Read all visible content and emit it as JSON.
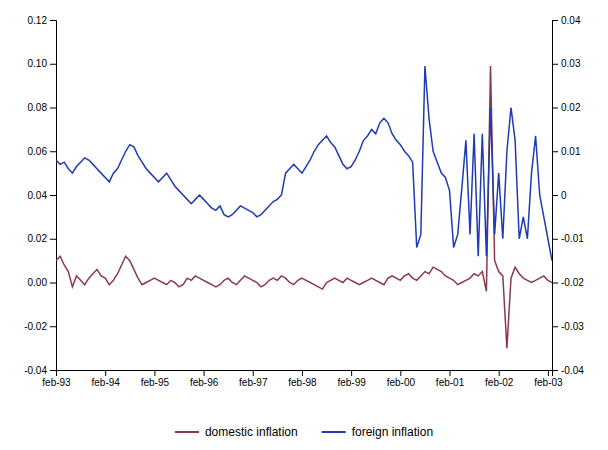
{
  "chart_data": {
    "type": "line",
    "categories": [
      "feb-93",
      null,
      null,
      null,
      null,
      null,
      null,
      null,
      null,
      null,
      null,
      null,
      "feb-94",
      null,
      null,
      null,
      null,
      null,
      null,
      null,
      null,
      null,
      null,
      null,
      "feb-95",
      null,
      null,
      null,
      null,
      null,
      null,
      null,
      null,
      null,
      null,
      null,
      "feb-96",
      null,
      null,
      null,
      null,
      null,
      null,
      null,
      null,
      null,
      null,
      null,
      "feb-97",
      null,
      null,
      null,
      null,
      null,
      null,
      null,
      null,
      null,
      null,
      null,
      "feb-98",
      null,
      null,
      null,
      null,
      null,
      null,
      null,
      null,
      null,
      null,
      null,
      "feb-99",
      null,
      null,
      null,
      null,
      null,
      null,
      null,
      null,
      null,
      null,
      null,
      "feb-00",
      null,
      null,
      null,
      null,
      null,
      null,
      null,
      null,
      null,
      null,
      null,
      "feb-01",
      null,
      null,
      null,
      null,
      null,
      null,
      null,
      null,
      null,
      null,
      null,
      "feb-02",
      null,
      null,
      null,
      null,
      null,
      null,
      null,
      null,
      null,
      null,
      null,
      "feb-03",
      null
    ],
    "series": [
      {
        "name": "domestic inflation",
        "color": "#8B3A4A",
        "values": [
          0.01,
          0.012,
          0.008,
          0.005,
          -0.002,
          0.003,
          0.001,
          -0.001,
          0.002,
          0.004,
          0.006,
          0.003,
          0.002,
          -0.001,
          0.001,
          0.004,
          0.008,
          0.012,
          0.01,
          0.006,
          0.002,
          -0.001,
          0.0,
          0.001,
          0.002,
          0.001,
          0.0,
          -0.001,
          0.001,
          0.0,
          -0.002,
          -0.001,
          0.002,
          0.001,
          0.003,
          0.002,
          0.001,
          0.0,
          -0.001,
          -0.002,
          -0.001,
          0.001,
          0.002,
          0.0,
          -0.001,
          0.001,
          0.003,
          0.002,
          0.001,
          0.0,
          -0.002,
          -0.001,
          0.001,
          0.002,
          0.001,
          0.003,
          0.002,
          0.0,
          -0.001,
          0.001,
          0.002,
          0.001,
          0.0,
          -0.001,
          -0.002,
          -0.003,
          0.0,
          0.001,
          0.002,
          0.001,
          0.0,
          0.002,
          0.001,
          0.0,
          -0.001,
          0.0,
          0.001,
          0.002,
          0.001,
          0.0,
          -0.001,
          0.002,
          0.003,
          0.002,
          0.001,
          0.003,
          0.004,
          0.002,
          0.001,
          0.003,
          0.005,
          0.004,
          0.007,
          0.006,
          0.005,
          0.003,
          0.002,
          0.001,
          -0.001,
          0.0,
          0.001,
          0.002,
          0.004,
          0.003,
          0.005,
          -0.004,
          0.099,
          0.01,
          0.005,
          0.003,
          -0.03,
          0.002,
          0.007,
          0.004,
          0.002,
          0.001,
          0.0,
          0.001,
          0.002,
          0.003,
          0.001,
          0.0
        ]
      },
      {
        "name": "foreign inflation",
        "color": "#1F3BB3",
        "values": [
          0.056,
          0.054,
          0.055,
          0.052,
          0.05,
          0.053,
          0.055,
          0.057,
          0.056,
          0.054,
          0.052,
          0.05,
          0.048,
          0.046,
          0.05,
          0.052,
          0.056,
          0.06,
          0.063,
          0.062,
          0.058,
          0.055,
          0.052,
          0.05,
          0.048,
          0.046,
          0.048,
          0.05,
          0.047,
          0.044,
          0.042,
          0.04,
          0.038,
          0.036,
          0.038,
          0.04,
          0.038,
          0.036,
          0.034,
          0.033,
          0.035,
          0.031,
          0.03,
          0.031,
          0.033,
          0.035,
          0.034,
          0.033,
          0.032,
          0.03,
          0.031,
          0.033,
          0.035,
          0.037,
          0.038,
          0.04,
          0.05,
          0.052,
          0.054,
          0.052,
          0.05,
          0.053,
          0.056,
          0.06,
          0.063,
          0.065,
          0.067,
          0.064,
          0.062,
          0.058,
          0.054,
          0.052,
          0.053,
          0.056,
          0.06,
          0.065,
          0.067,
          0.07,
          0.068,
          0.073,
          0.075,
          0.073,
          0.068,
          0.065,
          0.063,
          0.06,
          0.058,
          0.055,
          0.016,
          0.022,
          0.099,
          0.075,
          0.06,
          0.055,
          0.05,
          0.048,
          0.042,
          0.016,
          0.022,
          0.043,
          0.065,
          0.022,
          0.068,
          0.012,
          0.068,
          0.012,
          0.08,
          0.022,
          0.05,
          0.02,
          0.06,
          0.08,
          0.065,
          0.02,
          0.03,
          0.02,
          0.05,
          0.067,
          0.04,
          0.03,
          0.02,
          0.01
        ]
      }
    ],
    "ylim": [
      -0.04,
      0.12
    ],
    "yticks": [
      -0.04,
      -0.02,
      {
        "value": 0,
        "label": "0.00"
      },
      0.02,
      0.04,
      0.06,
      0.08,
      {
        "value": 0.1,
        "label": "0.10"
      },
      0.12
    ],
    "y2lim": [
      -0.04,
      0.04
    ],
    "y2ticks": [
      -0.04,
      -0.03,
      -0.02,
      -0.01,
      0,
      0.01,
      0.02,
      0.03,
      0.04
    ],
    "grid": false,
    "legend": "bottom"
  }
}
